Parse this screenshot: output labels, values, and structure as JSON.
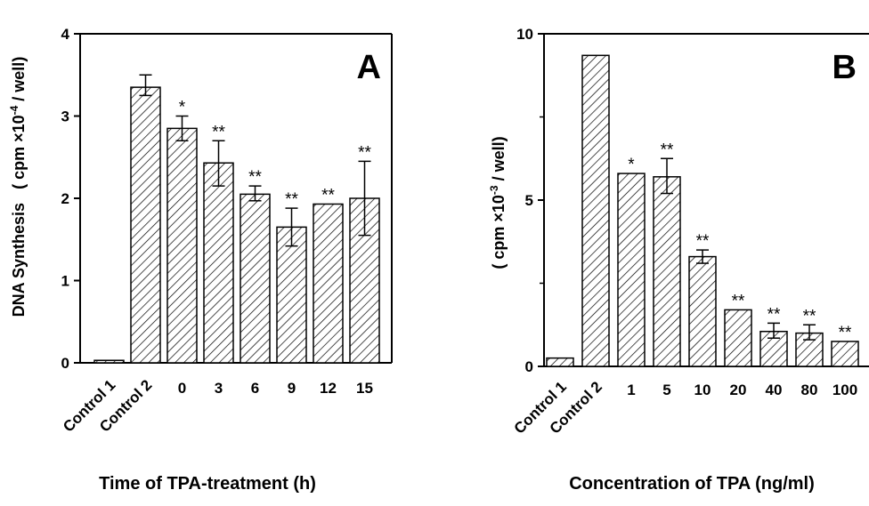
{
  "chart_data": [
    {
      "type": "bar",
      "panel": "A",
      "categories": [
        "Control 1",
        "Control 2",
        "0",
        "3",
        "6",
        "9",
        "12",
        "15"
      ],
      "values": [
        0.03,
        3.35,
        2.85,
        2.43,
        2.05,
        1.65,
        1.93,
        2.0
      ],
      "error_low": [
        null,
        3.25,
        2.7,
        2.15,
        1.97,
        1.42,
        null,
        1.55
      ],
      "error_high": [
        null,
        3.5,
        3.0,
        2.7,
        2.15,
        1.88,
        null,
        2.45
      ],
      "annotations": [
        "",
        "",
        "*",
        "**",
        "**",
        "**",
        "**",
        "**"
      ],
      "ylim": [
        0,
        4
      ],
      "yticks": [
        "0",
        "1",
        "2",
        "3",
        "4"
      ],
      "ylabel_main": "DNA Synthesis",
      "ylabel_unit": "( cpm ×10",
      "ylabel_exp": "-4",
      "ylabel_tail": " / well)",
      "xlabel": "Time of TPA-treatment (h)",
      "hatch": "diagonal",
      "colors": {
        "bar_fill": "#ffffff",
        "hatch": "#000000",
        "axis": "#000000"
      }
    },
    {
      "type": "bar",
      "panel": "B",
      "categories": [
        "Control 1",
        "Control 2",
        "1",
        "5",
        "10",
        "20",
        "40",
        "80",
        "100"
      ],
      "values": [
        0.25,
        9.35,
        5.8,
        5.7,
        3.3,
        1.7,
        1.05,
        1.0,
        0.75
      ],
      "error_low": [
        null,
        null,
        null,
        5.2,
        3.1,
        null,
        0.85,
        0.8,
        null
      ],
      "error_high": [
        null,
        null,
        null,
        6.25,
        3.5,
        null,
        1.3,
        1.25,
        null
      ],
      "annotations": [
        "",
        "",
        "*",
        "**",
        "**",
        "**",
        "**",
        "**",
        "**"
      ],
      "ylim": [
        0,
        10
      ],
      "yticks": [
        "0",
        "5",
        "10"
      ],
      "ylabel_unit": "( cpm ×10",
      "ylabel_exp": "-3",
      "ylabel_tail": " / well)",
      "xlabel": "Concentration of TPA (ng/ml)",
      "hatch": "diagonal",
      "colors": {
        "bar_fill": "#ffffff",
        "hatch": "#000000",
        "axis": "#000000"
      }
    }
  ]
}
